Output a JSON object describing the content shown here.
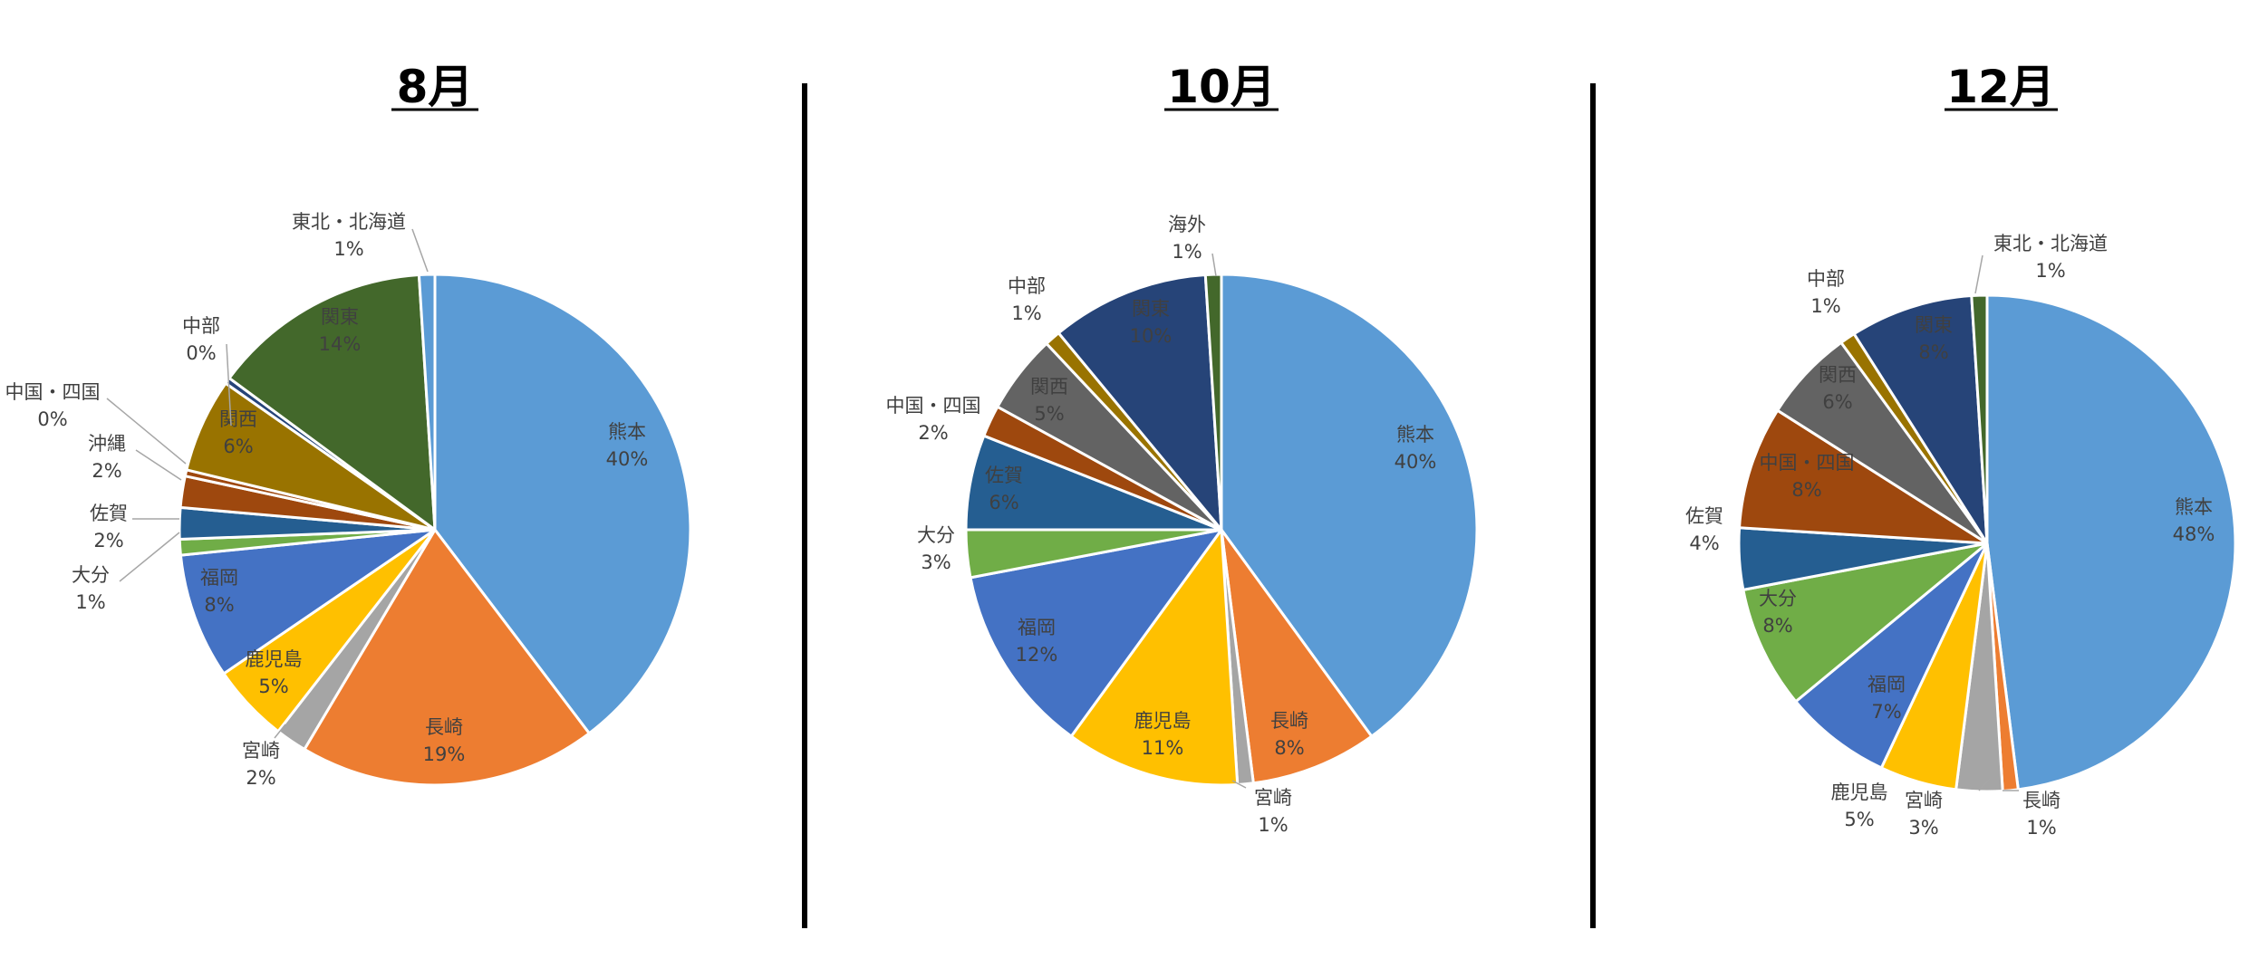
{
  "divider_color": "#000000",
  "colors": {
    "熊本": "#5B9BD5",
    "長崎": "#ED7D31",
    "宮崎": "#A5A5A5",
    "鹿児島": "#FFC000",
    "福岡": "#4472C4",
    "大分": "#70AD47",
    "佐賀": "#255E91",
    "沖縄": "#9E480E",
    "中国・四国": "#9E480E",
    "中国·四国": "#9E480E",
    "関西": "#636363",
    "関西_8": "#997300",
    "中部": "#264478",
    "中部_late": "#997300",
    "関東": "#43682B",
    "関東_late": "#264478",
    "東北・北海道": "#5B9BD5",
    "東北・北海道_12": "#43682B",
    "海外": "#43682B"
  },
  "chart_data": [
    {
      "type": "pie",
      "title": "8月",
      "slices": [
        {
          "name": "熊本",
          "value": 40,
          "label": "40%"
        },
        {
          "name": "長崎",
          "value": 19,
          "label": "19%"
        },
        {
          "name": "宮崎",
          "value": 2,
          "label": "2%"
        },
        {
          "name": "鹿児島",
          "value": 5,
          "label": "5%"
        },
        {
          "name": "福岡",
          "value": 8,
          "label": "8%"
        },
        {
          "name": "大分",
          "value": 1,
          "label": "1%"
        },
        {
          "name": "佐賀",
          "value": 2,
          "label": "2%"
        },
        {
          "name": "沖縄",
          "value": 2,
          "label": "2%"
        },
        {
          "name": "中国・四国",
          "value": 0.4,
          "label": "0%"
        },
        {
          "name": "関西",
          "value": 6,
          "label": "6%"
        },
        {
          "name": "中部",
          "value": 0.4,
          "label": "0%"
        },
        {
          "name": "関東",
          "value": 14,
          "label": "14%"
        },
        {
          "name": "東北・北海道",
          "value": 1,
          "label": "1%"
        }
      ]
    },
    {
      "type": "pie",
      "title": "10月",
      "slices": [
        {
          "name": "熊本",
          "value": 40,
          "label": "40%"
        },
        {
          "name": "長崎",
          "value": 8,
          "label": "8%"
        },
        {
          "name": "宮崎",
          "value": 1,
          "label": "1%"
        },
        {
          "name": "鹿児島",
          "value": 11,
          "label": "11%"
        },
        {
          "name": "福岡",
          "value": 12,
          "label": "12%"
        },
        {
          "name": "大分",
          "value": 3,
          "label": "3%"
        },
        {
          "name": "佐賀",
          "value": 6,
          "label": "6%"
        },
        {
          "name": "中国・四国",
          "value": 2,
          "label": "2%"
        },
        {
          "name": "関西",
          "value": 5,
          "label": "5%"
        },
        {
          "name": "中部",
          "value": 1,
          "label": "1%"
        },
        {
          "name": "関東",
          "value": 10,
          "label": "10%"
        },
        {
          "name": "海外",
          "value": 1,
          "label": "1%"
        }
      ]
    },
    {
      "type": "pie",
      "title": "12月",
      "slices": [
        {
          "name": "熊本",
          "value": 48,
          "label": "48%"
        },
        {
          "name": "長崎",
          "value": 1,
          "label": "1%"
        },
        {
          "name": "宮崎",
          "value": 3,
          "label": "3%"
        },
        {
          "name": "鹿児島",
          "value": 5,
          "label": "5%"
        },
        {
          "name": "福岡",
          "value": 7,
          "label": "7%"
        },
        {
          "name": "大分",
          "value": 8,
          "label": "8%"
        },
        {
          "name": "佐賀",
          "value": 4,
          "label": "4%"
        },
        {
          "name": "中国・四国",
          "value": 8,
          "label": "8%"
        },
        {
          "name": "関西",
          "value": 6,
          "label": "6%"
        },
        {
          "name": "中部",
          "value": 1,
          "label": "1%"
        },
        {
          "name": "関東",
          "value": 8,
          "label": "8%"
        },
        {
          "name": "東北・北海道",
          "value": 1,
          "label": "1%"
        }
      ]
    }
  ]
}
